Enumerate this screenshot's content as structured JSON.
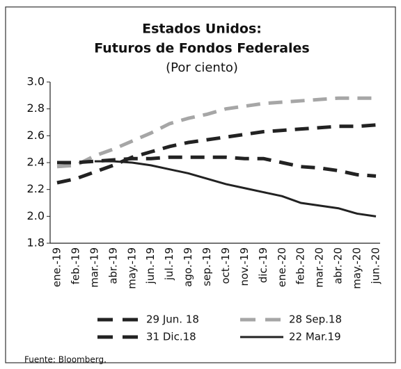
{
  "chart_data": {
    "type": "line",
    "title": [
      "Estados Unidos:",
      "Futuros de Fondos Federales"
    ],
    "subtitle": "(Por ciento)",
    "source": "Fuente: Bloomberg.",
    "categories": [
      "ene.-19",
      "feb.-19",
      "mar.-19",
      "abr.-19",
      "may.-19",
      "jun.-19",
      "jul.-19",
      "ago.-19",
      "sep.-19",
      "oct.-19",
      "nov.-19",
      "dic.-19",
      "ene.-20",
      "feb.-20",
      "mar.-20",
      "abr.-20",
      "may.-20",
      "jun.-20"
    ],
    "series": [
      {
        "name": "29 Jun. 18",
        "color": "#222222",
        "dash": true,
        "values": [
          2.25,
          2.28,
          2.33,
          2.38,
          2.44,
          2.48,
          2.52,
          2.55,
          2.57,
          2.59,
          2.61,
          2.63,
          2.64,
          2.65,
          2.66,
          2.67,
          2.67,
          2.68
        ]
      },
      {
        "name": "28 Sep.18",
        "color": "#a6a6a6",
        "dash": true,
        "values": [
          2.37,
          2.38,
          2.45,
          2.5,
          2.56,
          2.62,
          2.69,
          2.73,
          2.76,
          2.8,
          2.82,
          2.84,
          2.85,
          2.86,
          2.87,
          2.88,
          2.88,
          2.88
        ]
      },
      {
        "name": "31 Dic.18",
        "color": "#222222",
        "dash": true,
        "values": [
          2.4,
          2.4,
          2.41,
          2.42,
          2.43,
          2.43,
          2.44,
          2.44,
          2.44,
          2.44,
          2.43,
          2.43,
          2.4,
          2.37,
          2.36,
          2.34,
          2.31,
          2.3
        ]
      },
      {
        "name": "22 Mar.19",
        "color": "#222222",
        "dash": false,
        "values": [
          null,
          null,
          2.41,
          2.41,
          2.4,
          2.38,
          2.35,
          2.32,
          2.28,
          2.24,
          2.21,
          2.18,
          2.15,
          2.1,
          2.08,
          2.06,
          2.02,
          2.0
        ]
      }
    ],
    "ylim": [
      1.8,
      3.0
    ],
    "yticks": [
      1.8,
      {
        "value": 2.0,
        "label": "2.0"
      },
      2.2,
      2.4,
      2.6,
      2.8,
      {
        "value": 3.0,
        "label": "3.0"
      }
    ]
  }
}
